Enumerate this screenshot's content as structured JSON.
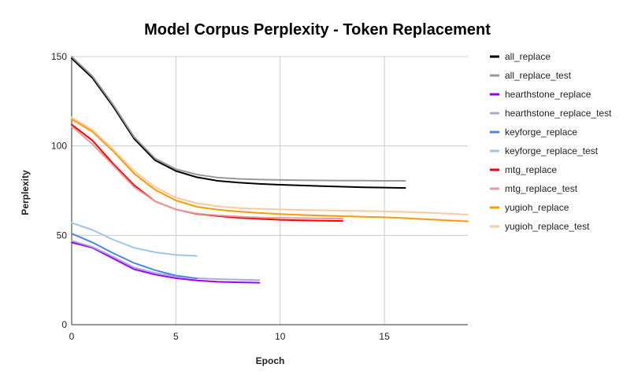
{
  "chart_data": {
    "type": "line",
    "title": "Model Corpus Perplexity - Token Replacement",
    "xlabel": "Epoch",
    "ylabel": "Perplexity",
    "xlim": [
      0,
      19
    ],
    "ylim": [
      0,
      150
    ],
    "xticks": [
      0,
      5,
      10,
      15
    ],
    "yticks": [
      0,
      50,
      100,
      150
    ],
    "grid": true,
    "legend_position": "right",
    "series": [
      {
        "name": "all_replace",
        "color": "#000000",
        "x": [
          0,
          1,
          2,
          3,
          4,
          5,
          6,
          7,
          8,
          9,
          10,
          11,
          12,
          13,
          14,
          15,
          16
        ],
        "y": [
          149,
          138,
          122,
          104,
          92,
          86,
          82.5,
          80.5,
          79.5,
          78.8,
          78.3,
          77.9,
          77.5,
          77.2,
          76.9,
          76.7,
          76.5
        ]
      },
      {
        "name": "all_replace_test",
        "color": "#999999",
        "x": [
          0,
          1,
          2,
          3,
          4,
          5,
          6,
          7,
          8,
          9,
          10,
          11,
          12,
          13,
          14,
          15,
          16
        ],
        "y": [
          150,
          139,
          123,
          105,
          93,
          87,
          84,
          82.3,
          81.6,
          81.2,
          81,
          80.8,
          80.7,
          80.6,
          80.6,
          80.5,
          80.5
        ]
      },
      {
        "name": "hearthstone_replace",
        "color": "#9900ff",
        "x": [
          0,
          1,
          2,
          3,
          4,
          5,
          6,
          7,
          8,
          9
        ],
        "y": [
          46,
          43,
          37,
          31,
          28,
          26,
          24.7,
          24,
          23.7,
          23.5
        ]
      },
      {
        "name": "hearthstone_replace_test",
        "color": "#b4a7d6",
        "x": [
          0,
          1,
          2,
          3,
          4,
          5,
          6,
          7,
          8,
          9
        ],
        "y": [
          47,
          43.5,
          38,
          32,
          29,
          27,
          26,
          25.5,
          25.2,
          25
        ]
      },
      {
        "name": "keyforge_replace",
        "color": "#4a86e8",
        "x": [
          0,
          1,
          2,
          3,
          4,
          5,
          6
        ],
        "y": [
          51,
          46,
          40,
          34.5,
          30.5,
          27.5,
          25.8
        ]
      },
      {
        "name": "keyforge_replace_test",
        "color": "#9fc5e8",
        "x": [
          0,
          1,
          2,
          3,
          4,
          5,
          6
        ],
        "y": [
          57,
          53,
          47.5,
          43,
          40.5,
          39,
          38.5
        ]
      },
      {
        "name": "mtg_replace",
        "color": "#ff0000",
        "x": [
          0,
          1,
          2,
          3,
          4,
          5,
          6,
          7,
          8,
          9,
          10,
          11,
          12,
          13
        ],
        "y": [
          112,
          103,
          90,
          78,
          69,
          64.5,
          62,
          60.8,
          59.8,
          59.2,
          58.7,
          58.4,
          58.2,
          58
        ]
      },
      {
        "name": "mtg_replace_test",
        "color": "#ea9999",
        "x": [
          0,
          1,
          2,
          3,
          4,
          5,
          6,
          7,
          8,
          9,
          10,
          11,
          12,
          13
        ],
        "y": [
          111,
          101,
          89,
          77,
          69,
          64.5,
          62.2,
          61.2,
          60.5,
          60,
          59.8,
          59.6,
          59.5,
          59.3
        ]
      },
      {
        "name": "yugioh_replace",
        "color": "#ff9900",
        "x": [
          0,
          1,
          2,
          3,
          4,
          5,
          6,
          7,
          8,
          9,
          10,
          11,
          12,
          13,
          14,
          15,
          16,
          17,
          18,
          19
        ],
        "y": [
          115,
          108,
          97,
          84.5,
          75.5,
          69.5,
          66,
          64.3,
          63.3,
          62.5,
          61.9,
          61.4,
          61,
          60.7,
          60.4,
          60.1,
          59.6,
          59,
          58.4,
          57.8
        ]
      },
      {
        "name": "yugioh_replace_test",
        "color": "#f9cb9c",
        "x": [
          0,
          1,
          2,
          3,
          4,
          5,
          6,
          7,
          8,
          9,
          10,
          11,
          12,
          13,
          14,
          15,
          16,
          17,
          18,
          19
        ],
        "y": [
          116,
          109,
          98,
          86,
          77,
          71,
          68,
          66.2,
          65.3,
          64.8,
          64.5,
          64.2,
          64,
          63.8,
          63.6,
          63.4,
          63.1,
          62.7,
          62.2,
          61.6
        ]
      }
    ]
  }
}
